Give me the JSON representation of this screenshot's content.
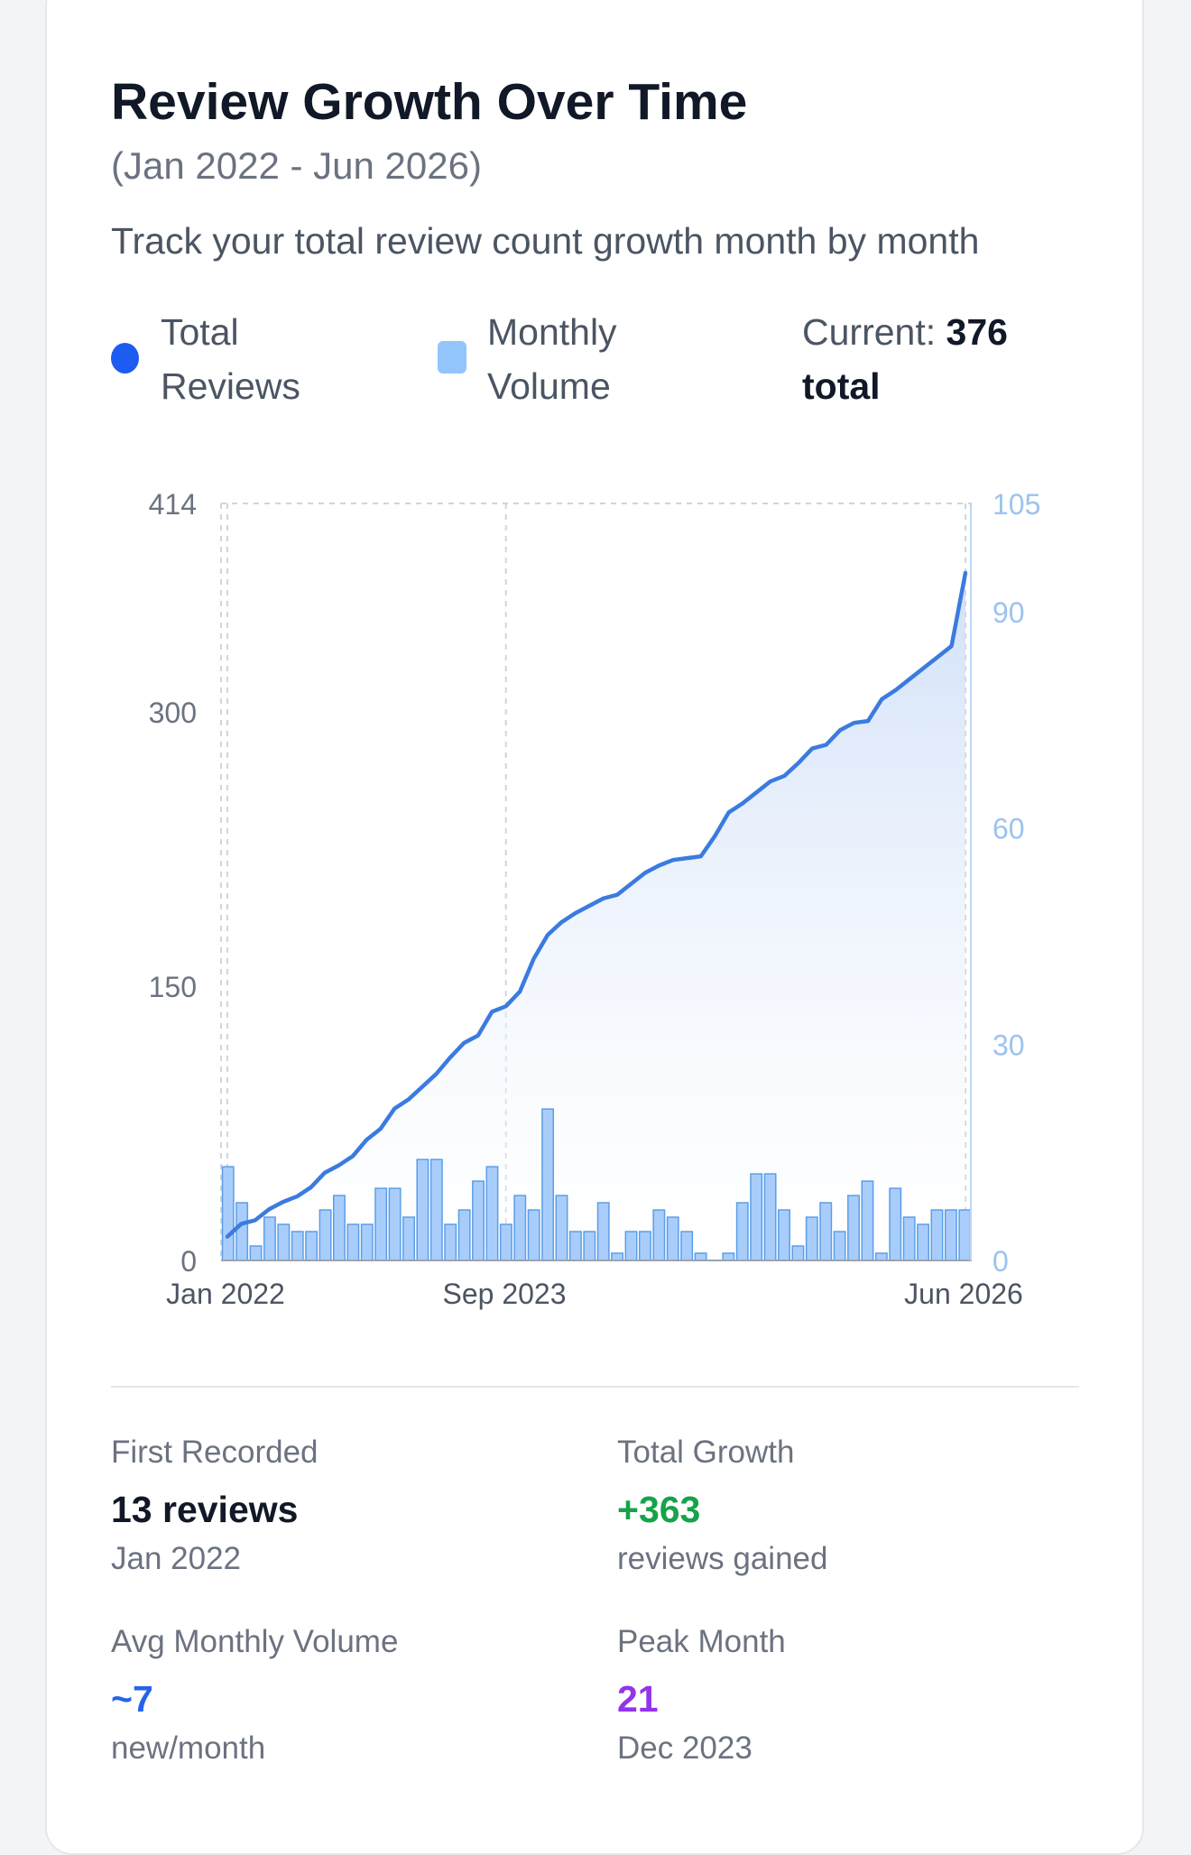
{
  "card": {
    "title": "Review Growth Over Time",
    "subtitle": "(Jan 2022 - Jun 2026)",
    "description": "Track your total review count growth month by month"
  },
  "legend": {
    "total_reviews": "Total Reviews",
    "monthly_volume": "Monthly Volume",
    "current_prefix": "Current:",
    "current_value": "376 total"
  },
  "colors": {
    "line": "#3b7be0",
    "area_top": "#c9dbf7",
    "bar_fill": "#a9cdfb",
    "bar_stroke": "#5b9ee8",
    "left_axis_text": "#6b7280",
    "right_axis_text": "#9cc3ef",
    "growth_green": "#16a34a",
    "avg_blue": "#2563eb",
    "peak_purple": "#9333ea"
  },
  "chart_data": {
    "type": "line",
    "x": [
      "Jan 2022",
      "Feb 2022",
      "Mar 2022",
      "Apr 2022",
      "May 2022",
      "Jun 2022",
      "Jul 2022",
      "Aug 2022",
      "Sep 2022",
      "Oct 2022",
      "Nov 2022",
      "Dec 2022",
      "Jan 2023",
      "Feb 2023",
      "Mar 2023",
      "Apr 2023",
      "May 2023",
      "Jun 2023",
      "Jul 2023",
      "Aug 2023",
      "Sep 2023",
      "Oct 2023",
      "Nov 2023",
      "Dec 2023",
      "Jan 2024",
      "Feb 2024",
      "Mar 2024",
      "Apr 2024",
      "May 2024",
      "Jun 2024",
      "Jul 2024",
      "Aug 2024",
      "Sep 2024",
      "Oct 2024",
      "Nov 2024",
      "Dec 2024",
      "Jan 2025",
      "Feb 2025",
      "Mar 2025",
      "Apr 2025",
      "May 2025",
      "Jun 2025",
      "Jul 2025",
      "Aug 2025",
      "Sep 2025",
      "Oct 2025",
      "Nov 2025",
      "Dec 2025",
      "Jan 2026",
      "Feb 2026",
      "Mar 2026",
      "Apr 2026",
      "May 2026",
      "Jun 2026"
    ],
    "x_ticks": [
      "Jan 2022",
      "Sep 2023",
      "Jun 2026"
    ],
    "series": [
      {
        "name": "Total Reviews",
        "axis": "left",
        "type": "line",
        "values": [
          13,
          20,
          22,
          28,
          32,
          35,
          40,
          48,
          52,
          57,
          66,
          72,
          83,
          88,
          95,
          102,
          111,
          119,
          123,
          136,
          139,
          147,
          165,
          178,
          185,
          190,
          194,
          198,
          200,
          206,
          212,
          216,
          219,
          220,
          221,
          232,
          245,
          250,
          256,
          262,
          265,
          272,
          280,
          282,
          290,
          294,
          295,
          307,
          312,
          318,
          324,
          330,
          336,
          376
        ]
      },
      {
        "name": "Monthly Volume",
        "axis": "right",
        "type": "bar",
        "values": [
          13,
          8,
          2,
          6,
          5,
          4,
          4,
          7,
          9,
          5,
          5,
          10,
          10,
          6,
          14,
          14,
          5,
          7,
          11,
          13,
          5,
          9,
          7,
          21,
          9,
          4,
          4,
          8,
          1,
          4,
          4,
          7,
          6,
          4,
          1,
          0,
          1,
          8,
          12,
          12,
          7,
          2,
          6,
          8,
          4,
          9,
          11,
          1,
          10,
          6,
          5,
          7,
          7,
          7
        ]
      }
    ],
    "ylim_left": [
      0,
      414
    ],
    "yticks_left": [
      0,
      150,
      300,
      414
    ],
    "ylim_right": [
      0,
      105
    ],
    "yticks_right": [
      0,
      30,
      60,
      90,
      105
    ],
    "grid": "dashed"
  },
  "stats": {
    "first_recorded": {
      "label": "First Recorded",
      "value": "13 reviews",
      "sub": "Jan 2022"
    },
    "total_growth": {
      "label": "Total Growth",
      "value": "+363",
      "sub": "reviews gained"
    },
    "avg_volume": {
      "label": "Avg Monthly Volume",
      "value": "~7",
      "sub": "new/month"
    },
    "peak_month": {
      "label": "Peak Month",
      "value": "21",
      "sub": "Dec 2023"
    }
  }
}
